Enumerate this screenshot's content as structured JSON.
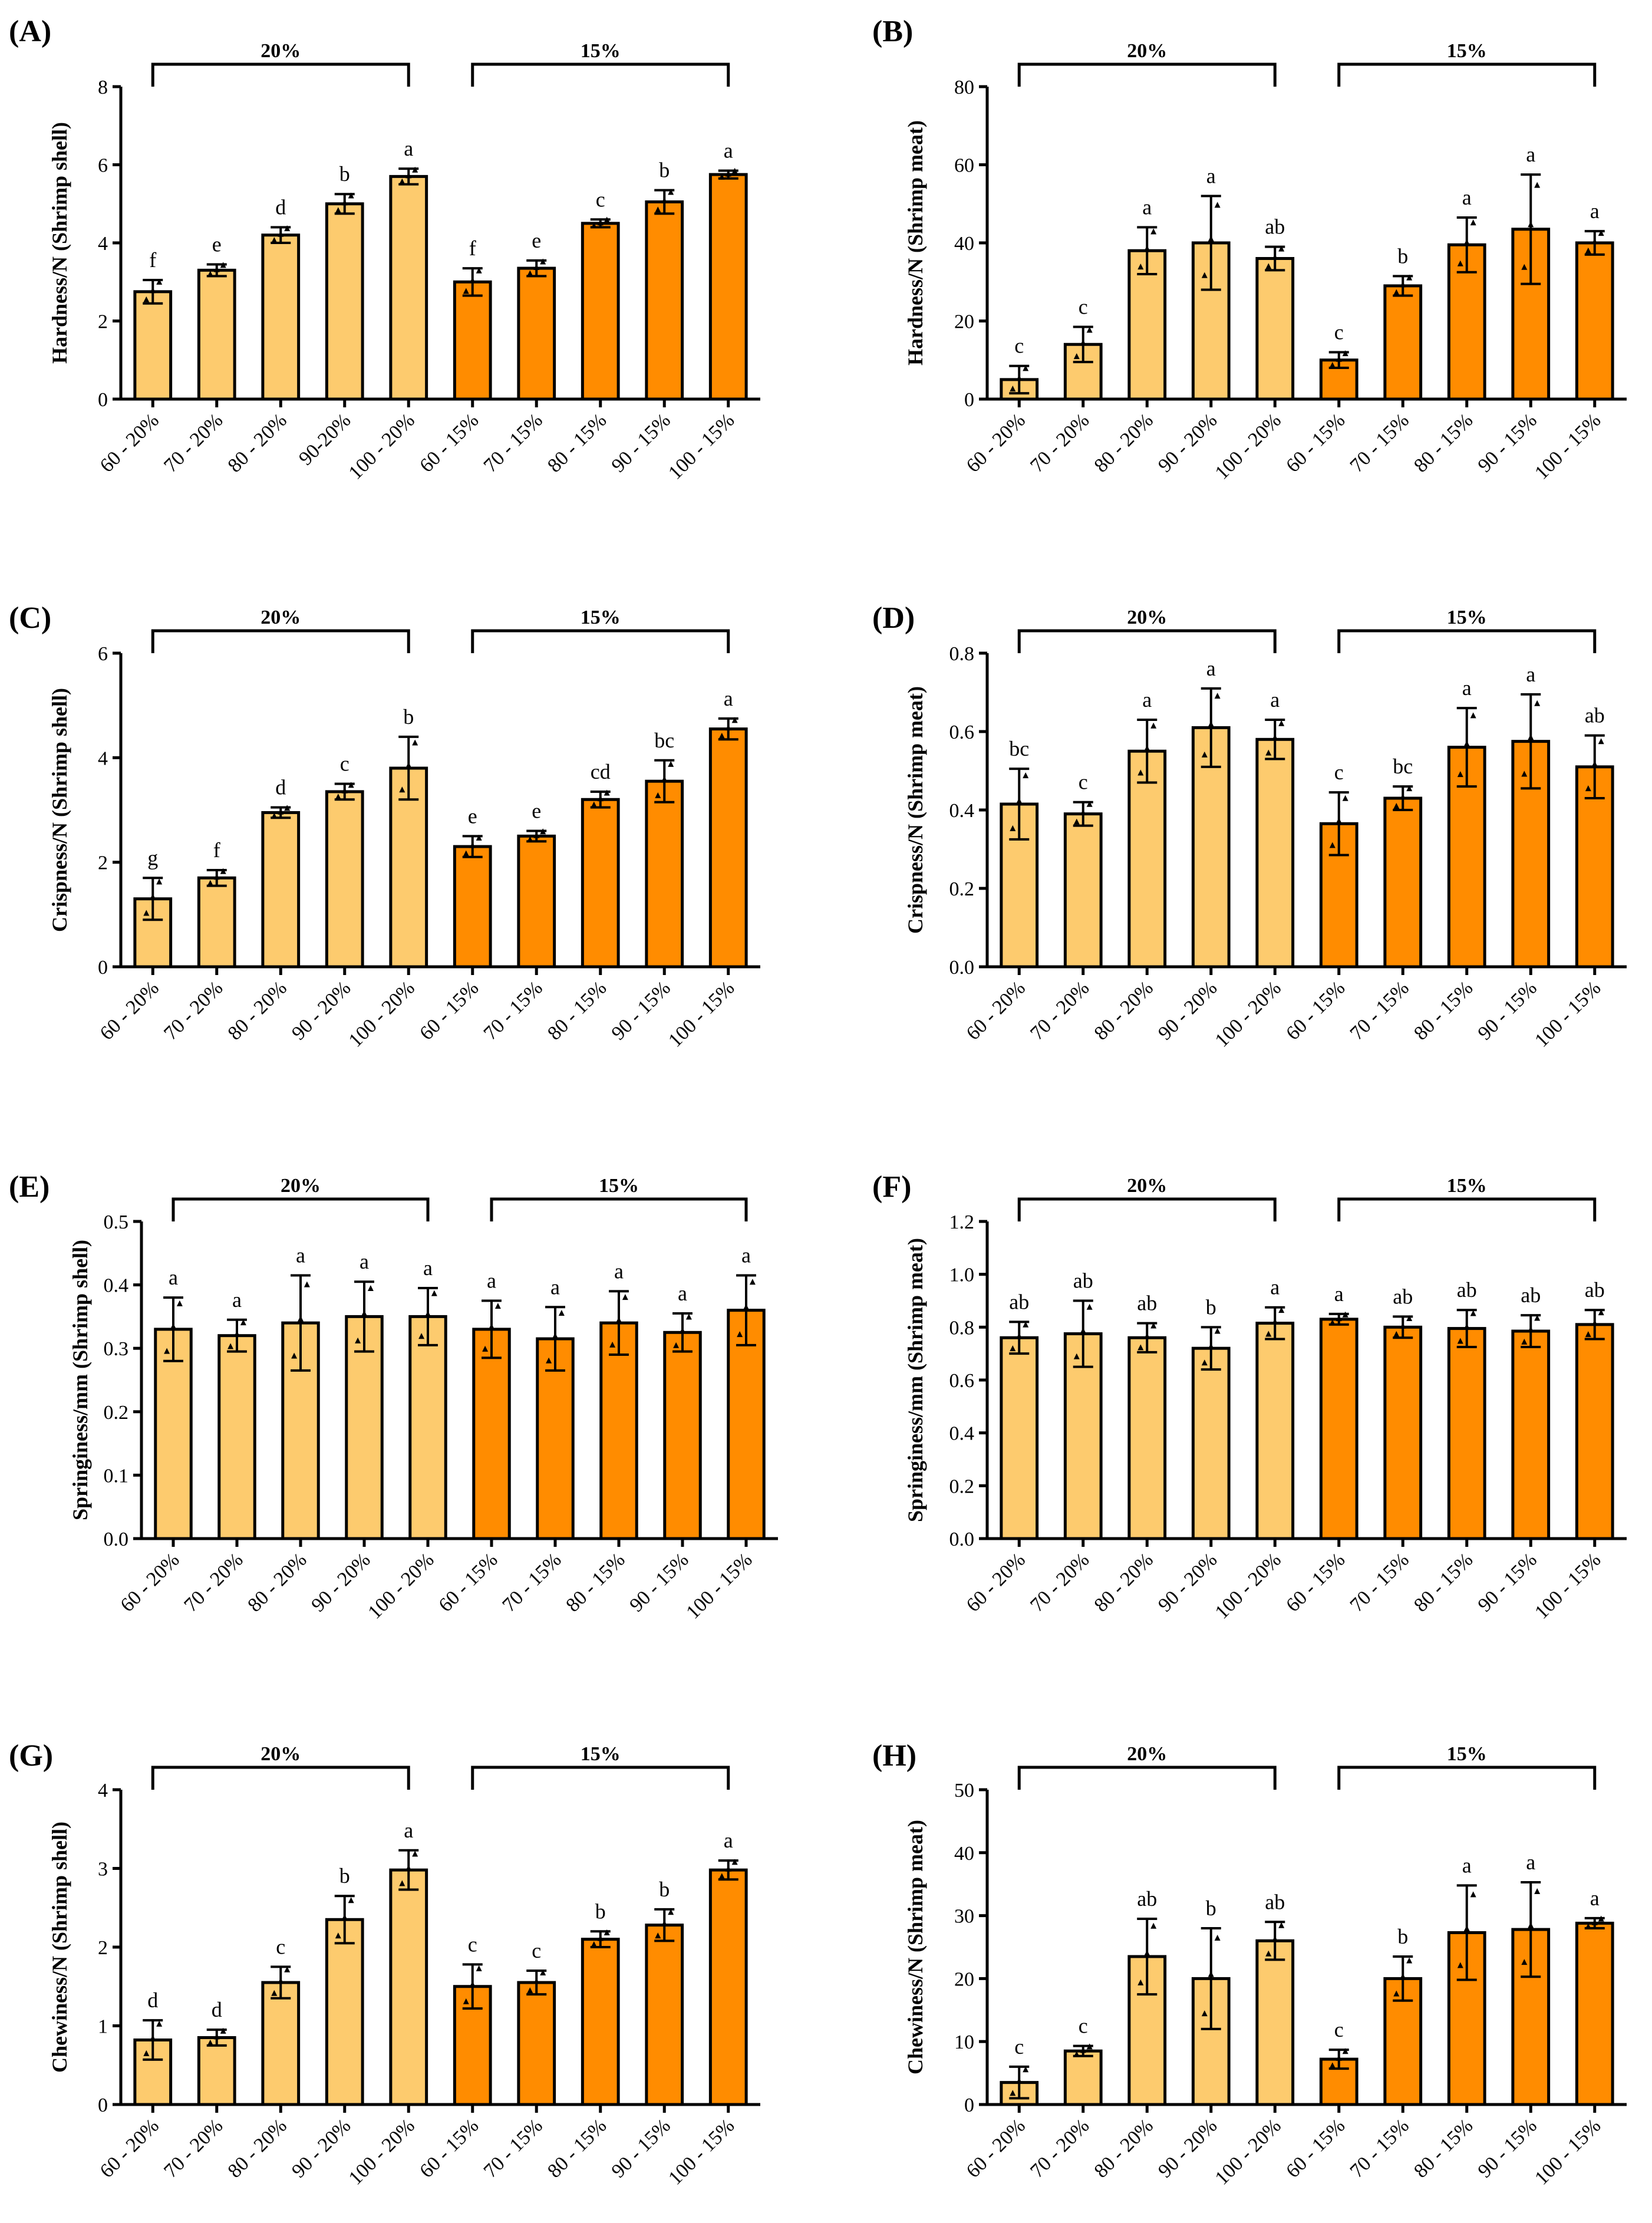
{
  "colors": {
    "group20": "#fdcb6e",
    "group15": "#ff8c00",
    "stroke": "#000000"
  },
  "chart_data": [
    {
      "type": "bar",
      "panel": "(A)",
      "ylabel": "Hardness/N (Shrimp shell)",
      "ylim": [
        0,
        8
      ],
      "yticks": [
        0,
        2,
        4,
        6,
        8
      ],
      "yticklabels": [
        "0",
        "2",
        "4",
        "6",
        "8"
      ],
      "categories": [
        "60 - 20%",
        "70 - 20%",
        "80 - 20%",
        "90-20%",
        "100 - 20%",
        "60 - 15%",
        "70 - 15%",
        "80 - 15%",
        "90 - 15%",
        "100 - 15%"
      ],
      "groups": [
        "20%",
        "15%"
      ],
      "values": [
        2.75,
        3.3,
        4.2,
        5.0,
        5.7,
        3.0,
        3.35,
        4.5,
        5.05,
        5.75
      ],
      "errors": [
        0.3,
        0.15,
        0.2,
        0.25,
        0.2,
        0.35,
        0.2,
        0.1,
        0.3,
        0.1
      ],
      "letters": [
        "f",
        "e",
        "d",
        "b",
        "a",
        "f",
        "e",
        "c",
        "b",
        "a"
      ]
    },
    {
      "type": "bar",
      "panel": "(B)",
      "ylabel": "Hardness/N (Shrimp meat)",
      "ylim": [
        0,
        80
      ],
      "yticks": [
        0,
        20,
        40,
        60,
        80
      ],
      "yticklabels": [
        "0",
        "20",
        "40",
        "60",
        "80"
      ],
      "categories": [
        "60 - 20%",
        "70 - 20%",
        "80 - 20%",
        "90 - 20%",
        "100 - 20%",
        "60 - 15%",
        "70 - 15%",
        "80 - 15%",
        "90 - 15%",
        "100 - 15%"
      ],
      "groups": [
        "20%",
        "15%"
      ],
      "values": [
        5.0,
        14.0,
        38.0,
        40.0,
        36.0,
        10.0,
        29.0,
        39.5,
        43.5,
        40.0
      ],
      "errors": [
        3.5,
        4.5,
        6.0,
        12.0,
        3.0,
        2.0,
        2.5,
        7.0,
        14.0,
        3.0
      ],
      "letters": [
        "c",
        "c",
        "a",
        "a",
        "ab",
        "c",
        "b",
        "a",
        "a",
        "a"
      ]
    },
    {
      "type": "bar",
      "panel": "(C)",
      "ylabel": "Crispness/N (Shrimp shell)",
      "ylim": [
        0,
        6
      ],
      "yticks": [
        0,
        2,
        4,
        6
      ],
      "yticklabels": [
        "0",
        "2",
        "4",
        "6"
      ],
      "categories": [
        "60 - 20%",
        "70 - 20%",
        "80 - 20%",
        "90 - 20%",
        "100 - 20%",
        "60 - 15%",
        "70 - 15%",
        "80 - 15%",
        "90 - 15%",
        "100 - 15%"
      ],
      "groups": [
        "20%",
        "15%"
      ],
      "values": [
        1.3,
        1.7,
        2.95,
        3.35,
        3.8,
        2.3,
        2.5,
        3.2,
        3.55,
        4.55
      ],
      "errors": [
        0.4,
        0.15,
        0.1,
        0.15,
        0.6,
        0.2,
        0.1,
        0.15,
        0.4,
        0.2
      ],
      "letters": [
        "g",
        "f",
        "d",
        "c",
        "b",
        "e",
        "e",
        "cd",
        "bc",
        "a"
      ]
    },
    {
      "type": "bar",
      "panel": "(D)",
      "ylabel": "Crispness/N (Shrimp meat)",
      "ylim": [
        0,
        0.8
      ],
      "yticks": [
        0,
        0.2,
        0.4,
        0.6,
        0.8
      ],
      "yticklabels": [
        "0.0",
        "0.2",
        "0.4",
        "0.6",
        "0.8"
      ],
      "categories": [
        "60 - 20%",
        "70 - 20%",
        "80 - 20%",
        "90 - 20%",
        "100 - 20%",
        "60 - 15%",
        "70 - 15%",
        "80 - 15%",
        "90 - 15%",
        "100 - 15%"
      ],
      "groups": [
        "20%",
        "15%"
      ],
      "values": [
        0.415,
        0.39,
        0.55,
        0.61,
        0.58,
        0.365,
        0.43,
        0.56,
        0.575,
        0.51
      ],
      "errors": [
        0.09,
        0.03,
        0.08,
        0.1,
        0.05,
        0.08,
        0.03,
        0.1,
        0.12,
        0.08
      ],
      "letters": [
        "bc",
        "c",
        "a",
        "a",
        "a",
        "c",
        "bc",
        "a",
        "a",
        "ab"
      ]
    },
    {
      "type": "bar",
      "panel": "(E)",
      "ylabel": "Springiness/mm (Shrimp shell)",
      "ylim": [
        0,
        0.5
      ],
      "yticks": [
        0,
        0.1,
        0.2,
        0.3,
        0.4,
        0.5
      ],
      "yticklabels": [
        "0.0",
        "0.1",
        "0.2",
        "0.3",
        "0.4",
        "0.5"
      ],
      "categories": [
        "60 - 20%",
        "70 - 20%",
        "80 - 20%",
        "90 - 20%",
        "100 - 20%",
        "60 - 15%",
        "70 - 15%",
        "80 - 15%",
        "90 - 15%",
        "100 - 15%"
      ],
      "groups": [
        "20%",
        "15%"
      ],
      "values": [
        0.33,
        0.32,
        0.34,
        0.35,
        0.35,
        0.33,
        0.315,
        0.34,
        0.325,
        0.36
      ],
      "errors": [
        0.05,
        0.025,
        0.075,
        0.055,
        0.045,
        0.045,
        0.05,
        0.05,
        0.03,
        0.055
      ],
      "letters": [
        "a",
        "a",
        "a",
        "a",
        "a",
        "a",
        "a",
        "a",
        "a",
        "a"
      ]
    },
    {
      "type": "bar",
      "panel": "(F)",
      "ylabel": "Springiness/mm (Shrimp meat)",
      "ylim": [
        0,
        1.2
      ],
      "yticks": [
        0,
        0.2,
        0.4,
        0.6,
        0.8,
        1.0,
        1.2
      ],
      "yticklabels": [
        "0.0",
        "0.2",
        "0.4",
        "0.6",
        "0.8",
        "1.0",
        "1.2"
      ],
      "categories": [
        "60 - 20%",
        "70 - 20%",
        "80 - 20%",
        "90 - 20%",
        "100 - 20%",
        "60 - 15%",
        "70 - 15%",
        "80 - 15%",
        "90 - 15%",
        "100 - 15%"
      ],
      "groups": [
        "20%",
        "15%"
      ],
      "values": [
        0.76,
        0.775,
        0.76,
        0.72,
        0.815,
        0.83,
        0.8,
        0.795,
        0.785,
        0.81
      ],
      "errors": [
        0.06,
        0.125,
        0.055,
        0.08,
        0.06,
        0.02,
        0.04,
        0.07,
        0.06,
        0.055
      ],
      "letters": [
        "ab",
        "ab",
        "ab",
        "b",
        "a",
        "a",
        "ab",
        "ab",
        "ab",
        "ab"
      ]
    },
    {
      "type": "bar",
      "panel": "(G)",
      "ylabel": "Chewiness/N (Shrimp shell)",
      "ylim": [
        0,
        4
      ],
      "yticks": [
        0,
        1,
        2,
        3,
        4
      ],
      "yticklabels": [
        "0",
        "1",
        "2",
        "3",
        "4"
      ],
      "categories": [
        "60 - 20%",
        "70 - 20%",
        "80 - 20%",
        "90 - 20%",
        "100 - 20%",
        "60 - 15%",
        "70 - 15%",
        "80 - 15%",
        "90 - 15%",
        "100 - 15%"
      ],
      "groups": [
        "20%",
        "15%"
      ],
      "values": [
        0.82,
        0.85,
        1.55,
        2.35,
        2.98,
        1.5,
        1.55,
        2.1,
        2.28,
        2.98
      ],
      "errors": [
        0.25,
        0.1,
        0.2,
        0.3,
        0.25,
        0.28,
        0.15,
        0.1,
        0.2,
        0.12
      ],
      "letters": [
        "d",
        "d",
        "c",
        "b",
        "a",
        "c",
        "c",
        "b",
        "b",
        "a"
      ]
    },
    {
      "type": "bar",
      "panel": "(H)",
      "ylabel": "Chewiness/N (Shrimp meat)",
      "ylim": [
        0,
        50
      ],
      "yticks": [
        0,
        10,
        20,
        30,
        40,
        50
      ],
      "yticklabels": [
        "0",
        "10",
        "20",
        "30",
        "40",
        "50"
      ],
      "categories": [
        "60 - 20%",
        "70 - 20%",
        "80 - 20%",
        "90 - 20%",
        "100 - 20%",
        "60 - 15%",
        "70 - 15%",
        "80 - 15%",
        "90 - 15%",
        "100 - 15%"
      ],
      "groups": [
        "20%",
        "15%"
      ],
      "values": [
        3.5,
        8.5,
        23.5,
        20.0,
        26.0,
        7.2,
        20.0,
        27.3,
        27.8,
        28.8
      ],
      "errors": [
        2.5,
        0.8,
        6.0,
        8.0,
        3.0,
        1.5,
        3.5,
        7.5,
        7.5,
        0.8
      ],
      "letters": [
        "c",
        "c",
        "ab",
        "b",
        "ab",
        "c",
        "b",
        "a",
        "a",
        "a"
      ]
    }
  ]
}
